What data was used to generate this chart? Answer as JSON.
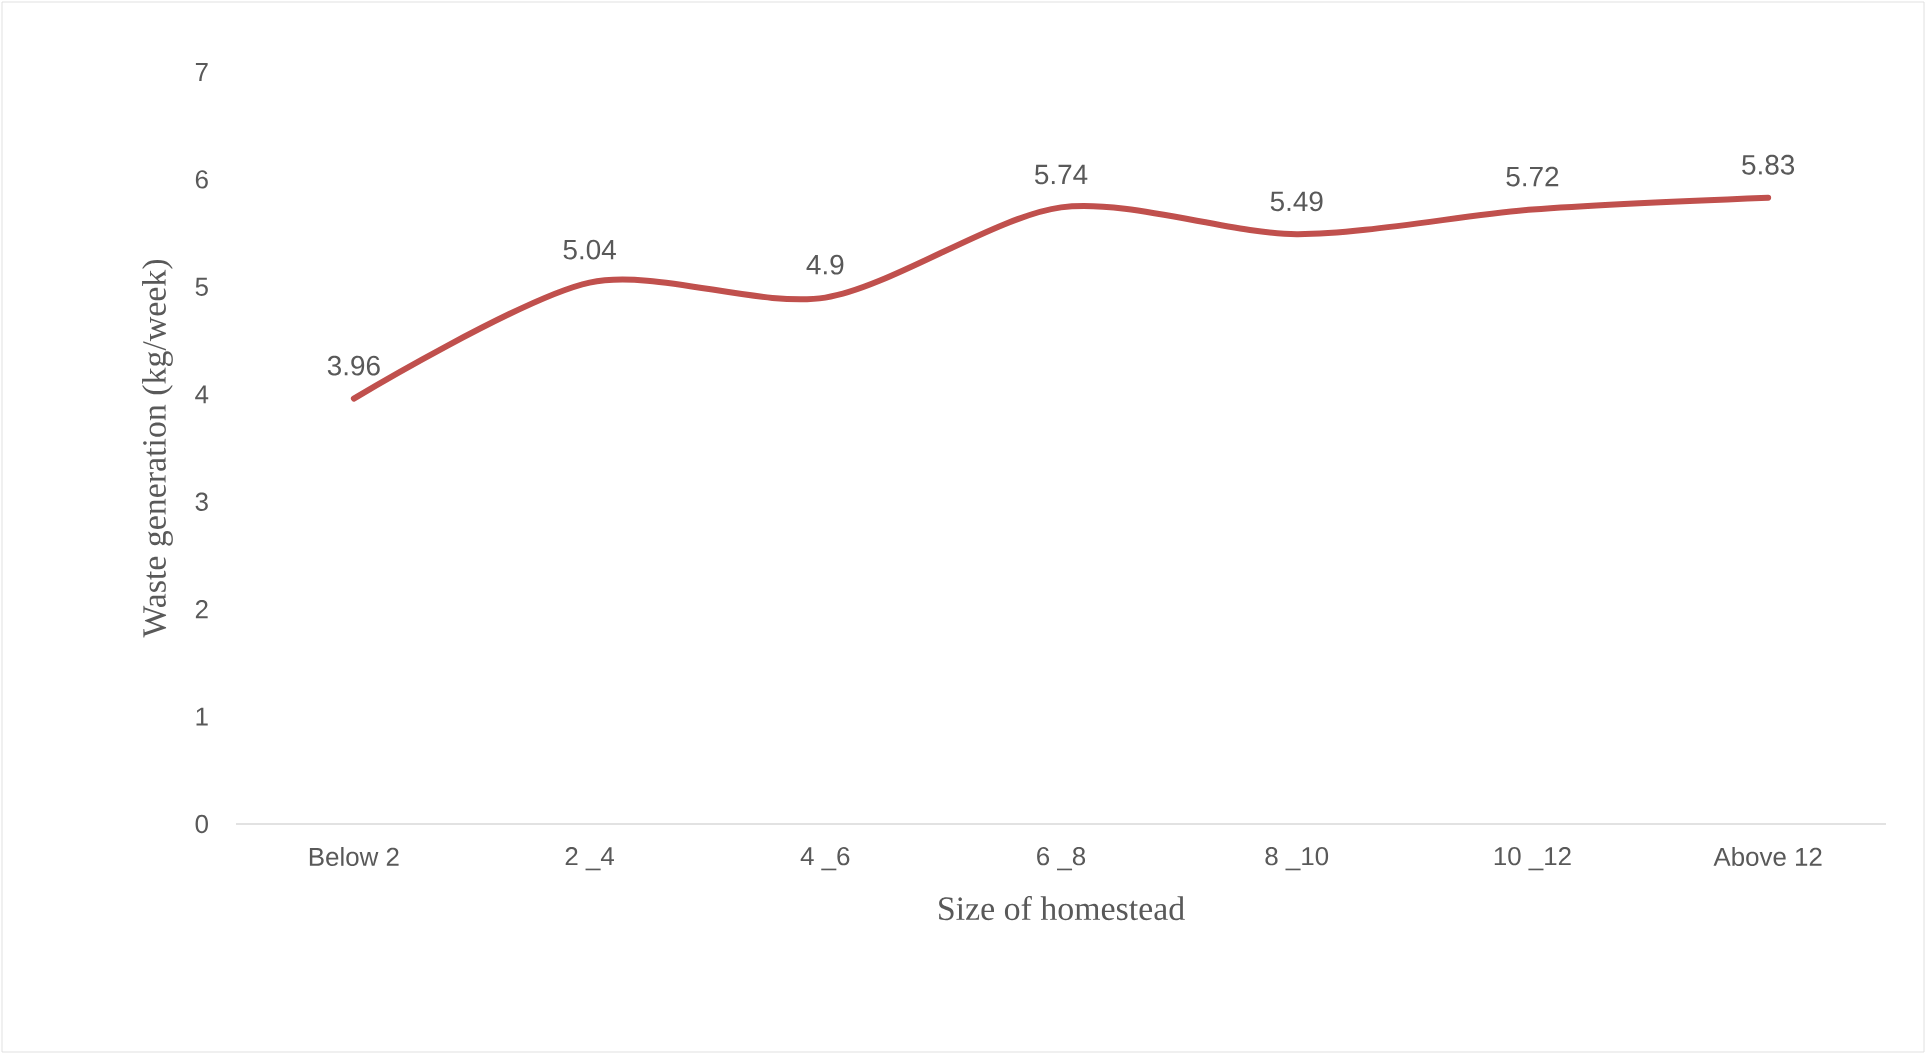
{
  "chart_data": {
    "type": "line",
    "xlabel": "Size of homestead",
    "ylabel": "Waste generation (kg/week)",
    "categories": [
      "Below 2",
      "2 _4",
      "4 _6",
      "6  _8",
      "8 _10",
      "10 _12",
      "Above 12"
    ],
    "series": [
      {
        "color": "#c0504d",
        "values": [
          3.96,
          5.04,
          4.9,
          5.74,
          5.49,
          5.72,
          5.83
        ]
      }
    ],
    "data_labels": true,
    "ylim": [
      0,
      7
    ],
    "yticks": [
      0,
      1,
      2,
      3,
      4,
      5,
      6,
      7
    ],
    "line_style": "solid",
    "marker": "none"
  }
}
